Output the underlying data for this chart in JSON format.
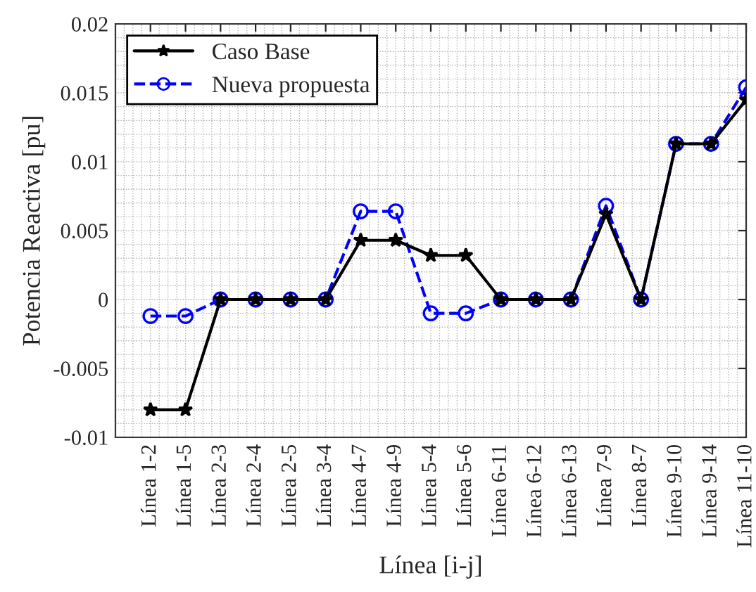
{
  "chart_data": {
    "type": "line",
    "xlabel": "Línea [i-j]",
    "ylabel": "Potencia Reactiva [pu]",
    "categories": [
      "Línea 1-2",
      "Línea 1-5",
      "Línea 2-3",
      "Línea 2-4",
      "Línea 2-5",
      "Línea 3-4",
      "Línea 4-7",
      "Línea 4-9",
      "Línea 5-4",
      "Línea 5-6",
      "Línea 6-11",
      "Línea 6-12",
      "Línea 6-13",
      "Línea 7-9",
      "Línea 8-7",
      "Línea 9-10",
      "Línea 9-14",
      "Línea 11-10"
    ],
    "series": [
      {
        "name": "Caso Base",
        "color": "#000000",
        "marker": "star",
        "line_style": "solid",
        "values": [
          -0.008,
          -0.008,
          0,
          0,
          0,
          0,
          0.0043,
          0.0043,
          0.0032,
          0.0032,
          0,
          0,
          0,
          0.0062,
          0,
          0.0113,
          0.0113,
          0.0145
        ]
      },
      {
        "name": "Nueva propuesta",
        "color": "#0000ff",
        "marker": "circle",
        "line_style": "dashed",
        "values": [
          -0.0012,
          -0.0012,
          0,
          0,
          0,
          0,
          0.0064,
          0.0064,
          -0.001,
          -0.001,
          0,
          0,
          0,
          0.0068,
          0,
          0.0113,
          0.0113,
          0.0154
        ]
      }
    ],
    "ylim": [
      -0.01,
      0.02
    ],
    "yticks": [
      -0.01,
      -0.005,
      0,
      0.005,
      0.01,
      0.015,
      0.02
    ],
    "grid": true,
    "legend": "top left"
  }
}
